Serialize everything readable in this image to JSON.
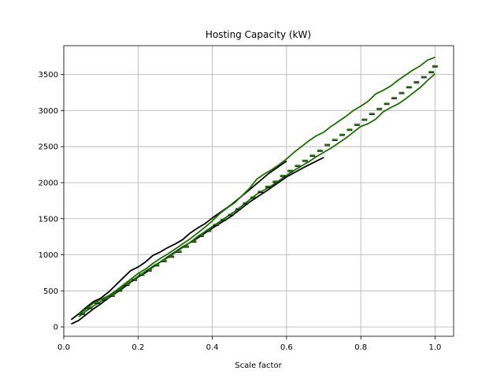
{
  "chart_data": {
    "type": "line",
    "title": "Hosting Capacity (kW)",
    "xlabel": "Scale factor",
    "ylabel": "",
    "xlim": [
      0.0,
      1.05
    ],
    "ylim": [
      -130,
      3900
    ],
    "grid": true,
    "x_ticks": [
      0.0,
      0.2,
      0.4,
      0.6,
      0.8,
      1.0
    ],
    "x_tick_labels": [
      "0.0",
      "0.2",
      "0.4",
      "0.6",
      "0.8",
      "1.0"
    ],
    "y_ticks": [
      0,
      500,
      1000,
      1500,
      2000,
      2500,
      3000,
      3500
    ],
    "y_tick_labels": [
      "0",
      "500",
      "1000",
      "1500",
      "2000",
      "2500",
      "3000",
      "3500"
    ],
    "series": [
      {
        "color": "#000000",
        "x": [
          0.02,
          0.04,
          0.06,
          0.08,
          0.1,
          0.12,
          0.14,
          0.16,
          0.18,
          0.2,
          0.22,
          0.24,
          0.26,
          0.28,
          0.3,
          0.32,
          0.34,
          0.36,
          0.38,
          0.4,
          0.45,
          0.5,
          0.55,
          0.6
        ],
        "values": [
          100,
          180,
          270,
          350,
          400,
          480,
          580,
          680,
          780,
          830,
          900,
          990,
          1040,
          1100,
          1150,
          1210,
          1300,
          1370,
          1430,
          1510,
          1690,
          1900,
          2120,
          2300
        ]
      },
      {
        "color": "#000000",
        "x": [
          0.02,
          0.04,
          0.06,
          0.08,
          0.1,
          0.12,
          0.14,
          0.16,
          0.18,
          0.2,
          0.22,
          0.24,
          0.26,
          0.28,
          0.3,
          0.32,
          0.34,
          0.36,
          0.38,
          0.4,
          0.45,
          0.5,
          0.55,
          0.6,
          0.65,
          0.7
        ],
        "values": [
          40,
          90,
          170,
          250,
          320,
          400,
          470,
          540,
          620,
          690,
          750,
          830,
          900,
          970,
          1040,
          1110,
          1170,
          1230,
          1300,
          1370,
          1530,
          1730,
          1900,
          2080,
          2220,
          2350
        ]
      },
      {
        "color": "#1a6e00",
        "x": [
          0.04,
          0.06,
          0.08,
          0.1,
          0.12,
          0.14,
          0.16,
          0.18,
          0.2,
          0.22,
          0.24,
          0.26,
          0.28,
          0.3,
          0.32,
          0.34,
          0.36,
          0.38,
          0.4,
          0.42,
          0.44,
          0.46,
          0.48,
          0.5,
          0.52,
          0.54,
          0.56,
          0.58,
          0.6,
          0.62,
          0.64,
          0.66,
          0.68,
          0.7,
          0.72,
          0.74,
          0.76,
          0.78,
          0.8,
          0.82,
          0.84,
          0.86,
          0.88,
          0.9,
          0.92,
          0.94,
          0.96,
          0.98,
          1.0
        ],
        "values": [
          170,
          250,
          330,
          380,
          430,
          500,
          580,
          660,
          740,
          800,
          880,
          950,
          1010,
          1080,
          1150,
          1220,
          1300,
          1380,
          1470,
          1570,
          1650,
          1720,
          1820,
          1920,
          2050,
          2120,
          2180,
          2250,
          2330,
          2420,
          2500,
          2580,
          2650,
          2700,
          2780,
          2850,
          2920,
          3000,
          3060,
          3130,
          3230,
          3280,
          3340,
          3420,
          3490,
          3560,
          3620,
          3700,
          3740
        ]
      },
      {
        "color": "#1a6e00",
        "x": [
          0.04,
          0.06,
          0.08,
          0.1,
          0.12,
          0.14,
          0.16,
          0.18,
          0.2,
          0.22,
          0.24,
          0.26,
          0.28,
          0.3,
          0.32,
          0.34,
          0.36,
          0.38,
          0.4,
          0.42,
          0.44,
          0.46,
          0.48,
          0.5,
          0.52,
          0.54,
          0.56,
          0.58,
          0.6,
          0.62,
          0.64,
          0.66,
          0.68,
          0.7,
          0.72,
          0.74,
          0.76,
          0.78,
          0.8,
          0.82,
          0.84,
          0.86,
          0.88,
          0.9,
          0.92,
          0.94,
          0.96,
          0.98,
          1.0
        ],
        "values": [
          140,
          220,
          290,
          350,
          410,
          480,
          560,
          630,
          700,
          770,
          840,
          900,
          960,
          1030,
          1100,
          1170,
          1250,
          1320,
          1390,
          1460,
          1530,
          1600,
          1680,
          1760,
          1840,
          1900,
          1960,
          2030,
          2100,
          2170,
          2230,
          2290,
          2360,
          2420,
          2480,
          2550,
          2620,
          2700,
          2780,
          2820,
          2880,
          2980,
          3040,
          3090,
          3160,
          3240,
          3320,
          3420,
          3510
        ]
      }
    ],
    "markers": {
      "color": "#1a6e00",
      "x": [
        0.05,
        0.07,
        0.09,
        0.11,
        0.13,
        0.15,
        0.17,
        0.19,
        0.21,
        0.23,
        0.25,
        0.27,
        0.29,
        0.31,
        0.33,
        0.35,
        0.37,
        0.39,
        0.41,
        0.43,
        0.45,
        0.47,
        0.49,
        0.51,
        0.53,
        0.55,
        0.57,
        0.59,
        0.61,
        0.63,
        0.65,
        0.67,
        0.69,
        0.71,
        0.73,
        0.75,
        0.77,
        0.79,
        0.81,
        0.83,
        0.85,
        0.87,
        0.89,
        0.91,
        0.93,
        0.95,
        0.97,
        0.99,
        1.0
      ],
      "values": [
        190,
        270,
        340,
        390,
        440,
        510,
        590,
        660,
        730,
        790,
        860,
        920,
        980,
        1050,
        1120,
        1190,
        1270,
        1340,
        1420,
        1490,
        1560,
        1640,
        1720,
        1800,
        1880,
        1950,
        2020,
        2100,
        2170,
        2240,
        2310,
        2380,
        2450,
        2530,
        2600,
        2670,
        2740,
        2810,
        2880,
        2960,
        3030,
        3100,
        3180,
        3250,
        3330,
        3400,
        3470,
        3540,
        3620
      ]
    }
  }
}
